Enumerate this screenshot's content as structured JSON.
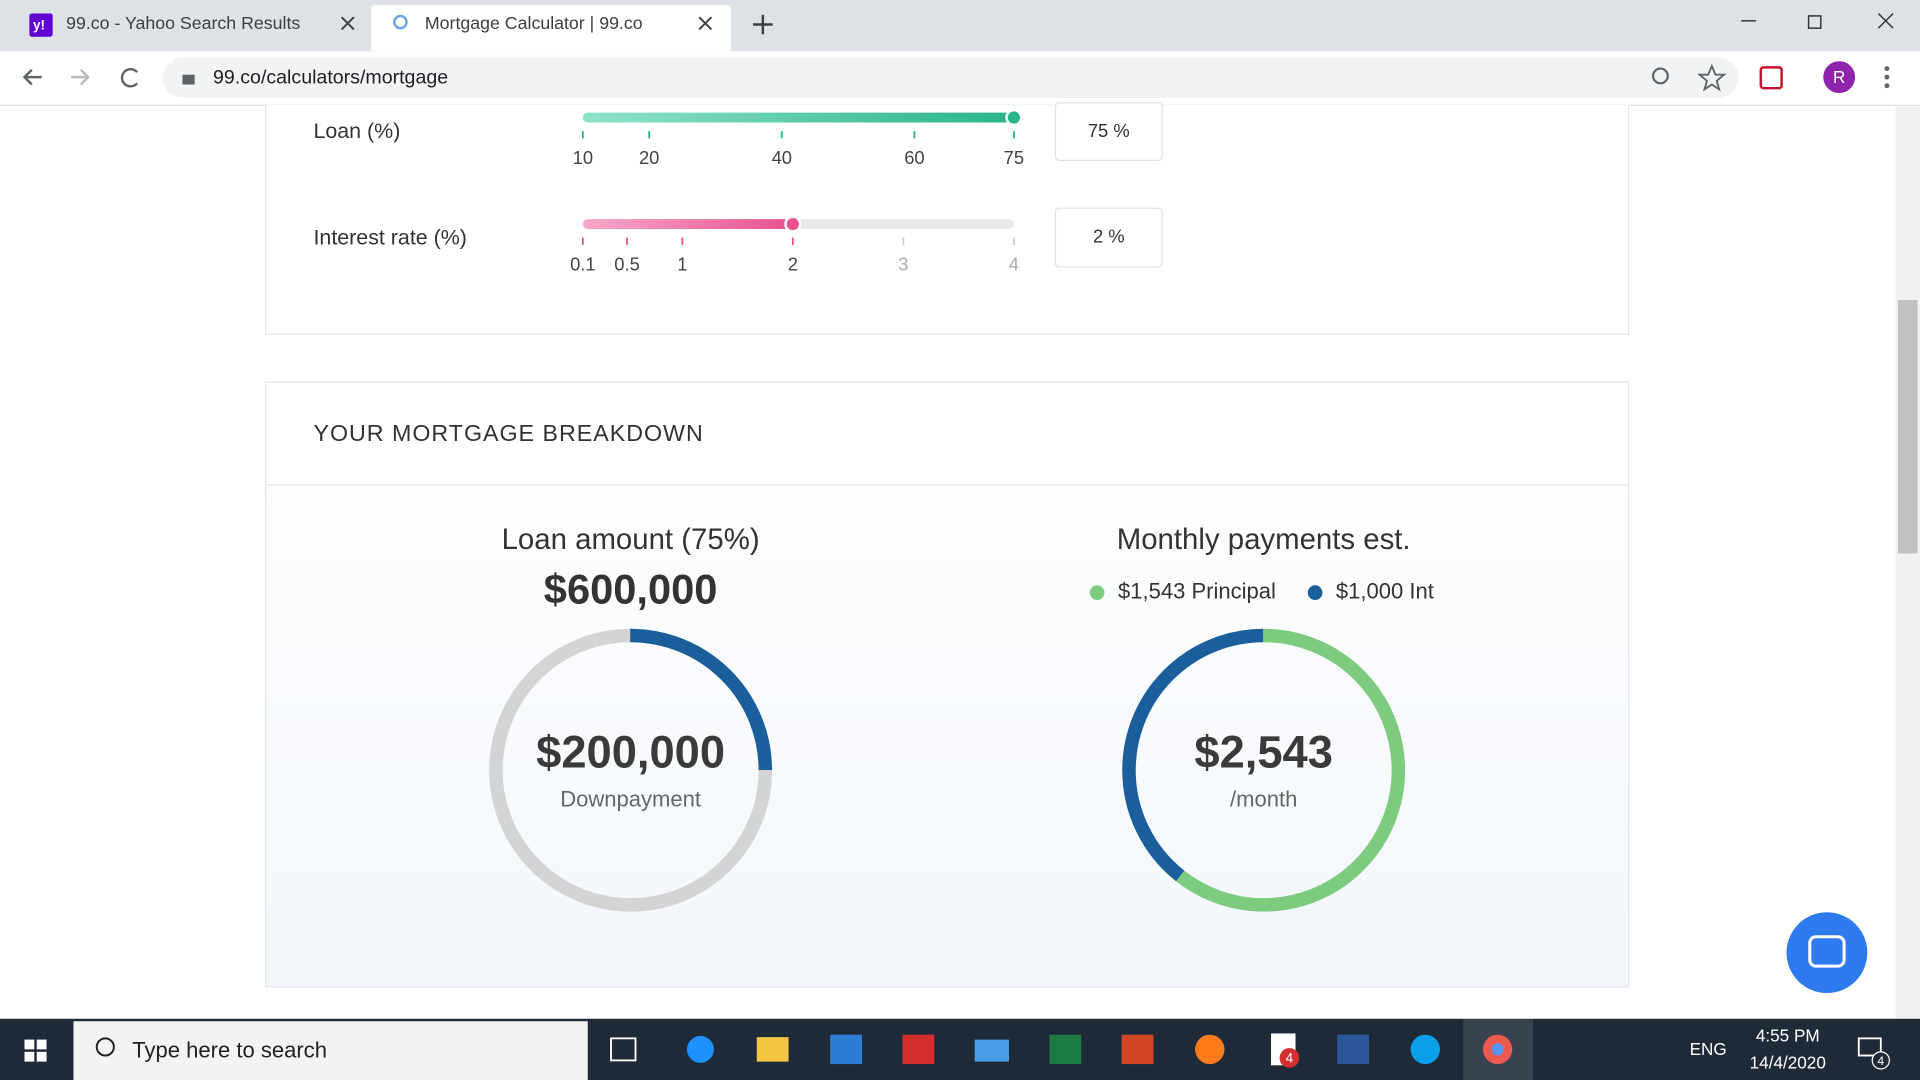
{
  "browser": {
    "tabs": [
      "99.co - Yahoo Search Results",
      "Mortgage Calculator | 99.co"
    ],
    "url": "99.co/calculators/mortgage",
    "avatar": "R"
  },
  "calculator": {
    "loan": {
      "label": "Loan (%)",
      "ticks": [
        10,
        20,
        40,
        60,
        75
      ],
      "value": 75,
      "input": "75 %"
    },
    "interest": {
      "label": "Interest rate (%)",
      "ticks": [
        0.1,
        0.5,
        1,
        2,
        3,
        4
      ],
      "value": 2,
      "input": "2 %"
    }
  },
  "breakdown": {
    "title": "YOUR MORTGAGE BREAKDOWN",
    "loan_title": "Loan amount (75%)",
    "loan_amount": {
      "value": 600000,
      "label": "$600,000"
    },
    "downpayment": {
      "value": 200000,
      "label": "$200,000"
    },
    "downpayment_caption": "Downpayment",
    "monthly_title": "Monthly payments est.",
    "principal": {
      "value": 1543,
      "label": "$1,543 Principal"
    },
    "interest": {
      "value": 1000,
      "label": "$1,000 Int"
    },
    "monthly_total": {
      "value": 2543,
      "label": "$2,543"
    },
    "monthly_caption": "/month"
  },
  "taskbar": {
    "search": "Type here to search",
    "language": "ENG",
    "time": "4:55 PM",
    "date": "14/4/2020",
    "badge": "4",
    "app_badge": "4"
  }
}
